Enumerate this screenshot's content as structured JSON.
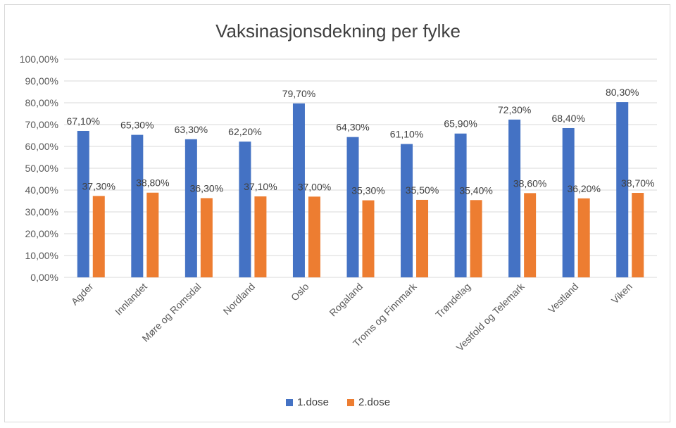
{
  "colors": {
    "dose1": "#4472C4",
    "dose2": "#ED7D31",
    "grid": "#d9d9d9",
    "text": "#595959"
  },
  "chart_data": {
    "type": "bar",
    "title": "Vaksinasjonsdekning per fylke",
    "categories": [
      "Agder",
      "Innlandet",
      "Møre og Romsdal",
      "Nordland",
      "Oslo",
      "Rogaland",
      "Troms og Finnmark",
      "Trøndelag",
      "Vestfold og Telemark",
      "Vestland",
      "Viken"
    ],
    "series": [
      {
        "name": "1.dose",
        "values": [
          67.1,
          65.3,
          63.3,
          62.2,
          79.7,
          64.3,
          61.1,
          65.9,
          72.3,
          68.4,
          80.3
        ],
        "labels": [
          "67,10%",
          "65,30%",
          "63,30%",
          "62,20%",
          "79,70%",
          "64,30%",
          "61,10%",
          "65,90%",
          "72,30%",
          "68,40%",
          "80,30%"
        ]
      },
      {
        "name": "2.dose",
        "values": [
          37.3,
          38.8,
          36.3,
          37.1,
          37.0,
          35.3,
          35.5,
          35.4,
          38.6,
          36.2,
          38.7
        ],
        "labels": [
          "37,30%",
          "38,80%",
          "36,30%",
          "37,10%",
          "37,00%",
          "35,30%",
          "35,50%",
          "35,40%",
          "38,60%",
          "36,20%",
          "38,70%"
        ]
      }
    ],
    "ylim": [
      0,
      100
    ],
    "yticks": [
      "0,00%",
      "10,00%",
      "20,00%",
      "30,00%",
      "40,00%",
      "50,00%",
      "60,00%",
      "70,00%",
      "80,00%",
      "90,00%",
      "100,00%"
    ],
    "grid": true,
    "legend": "bottom"
  }
}
